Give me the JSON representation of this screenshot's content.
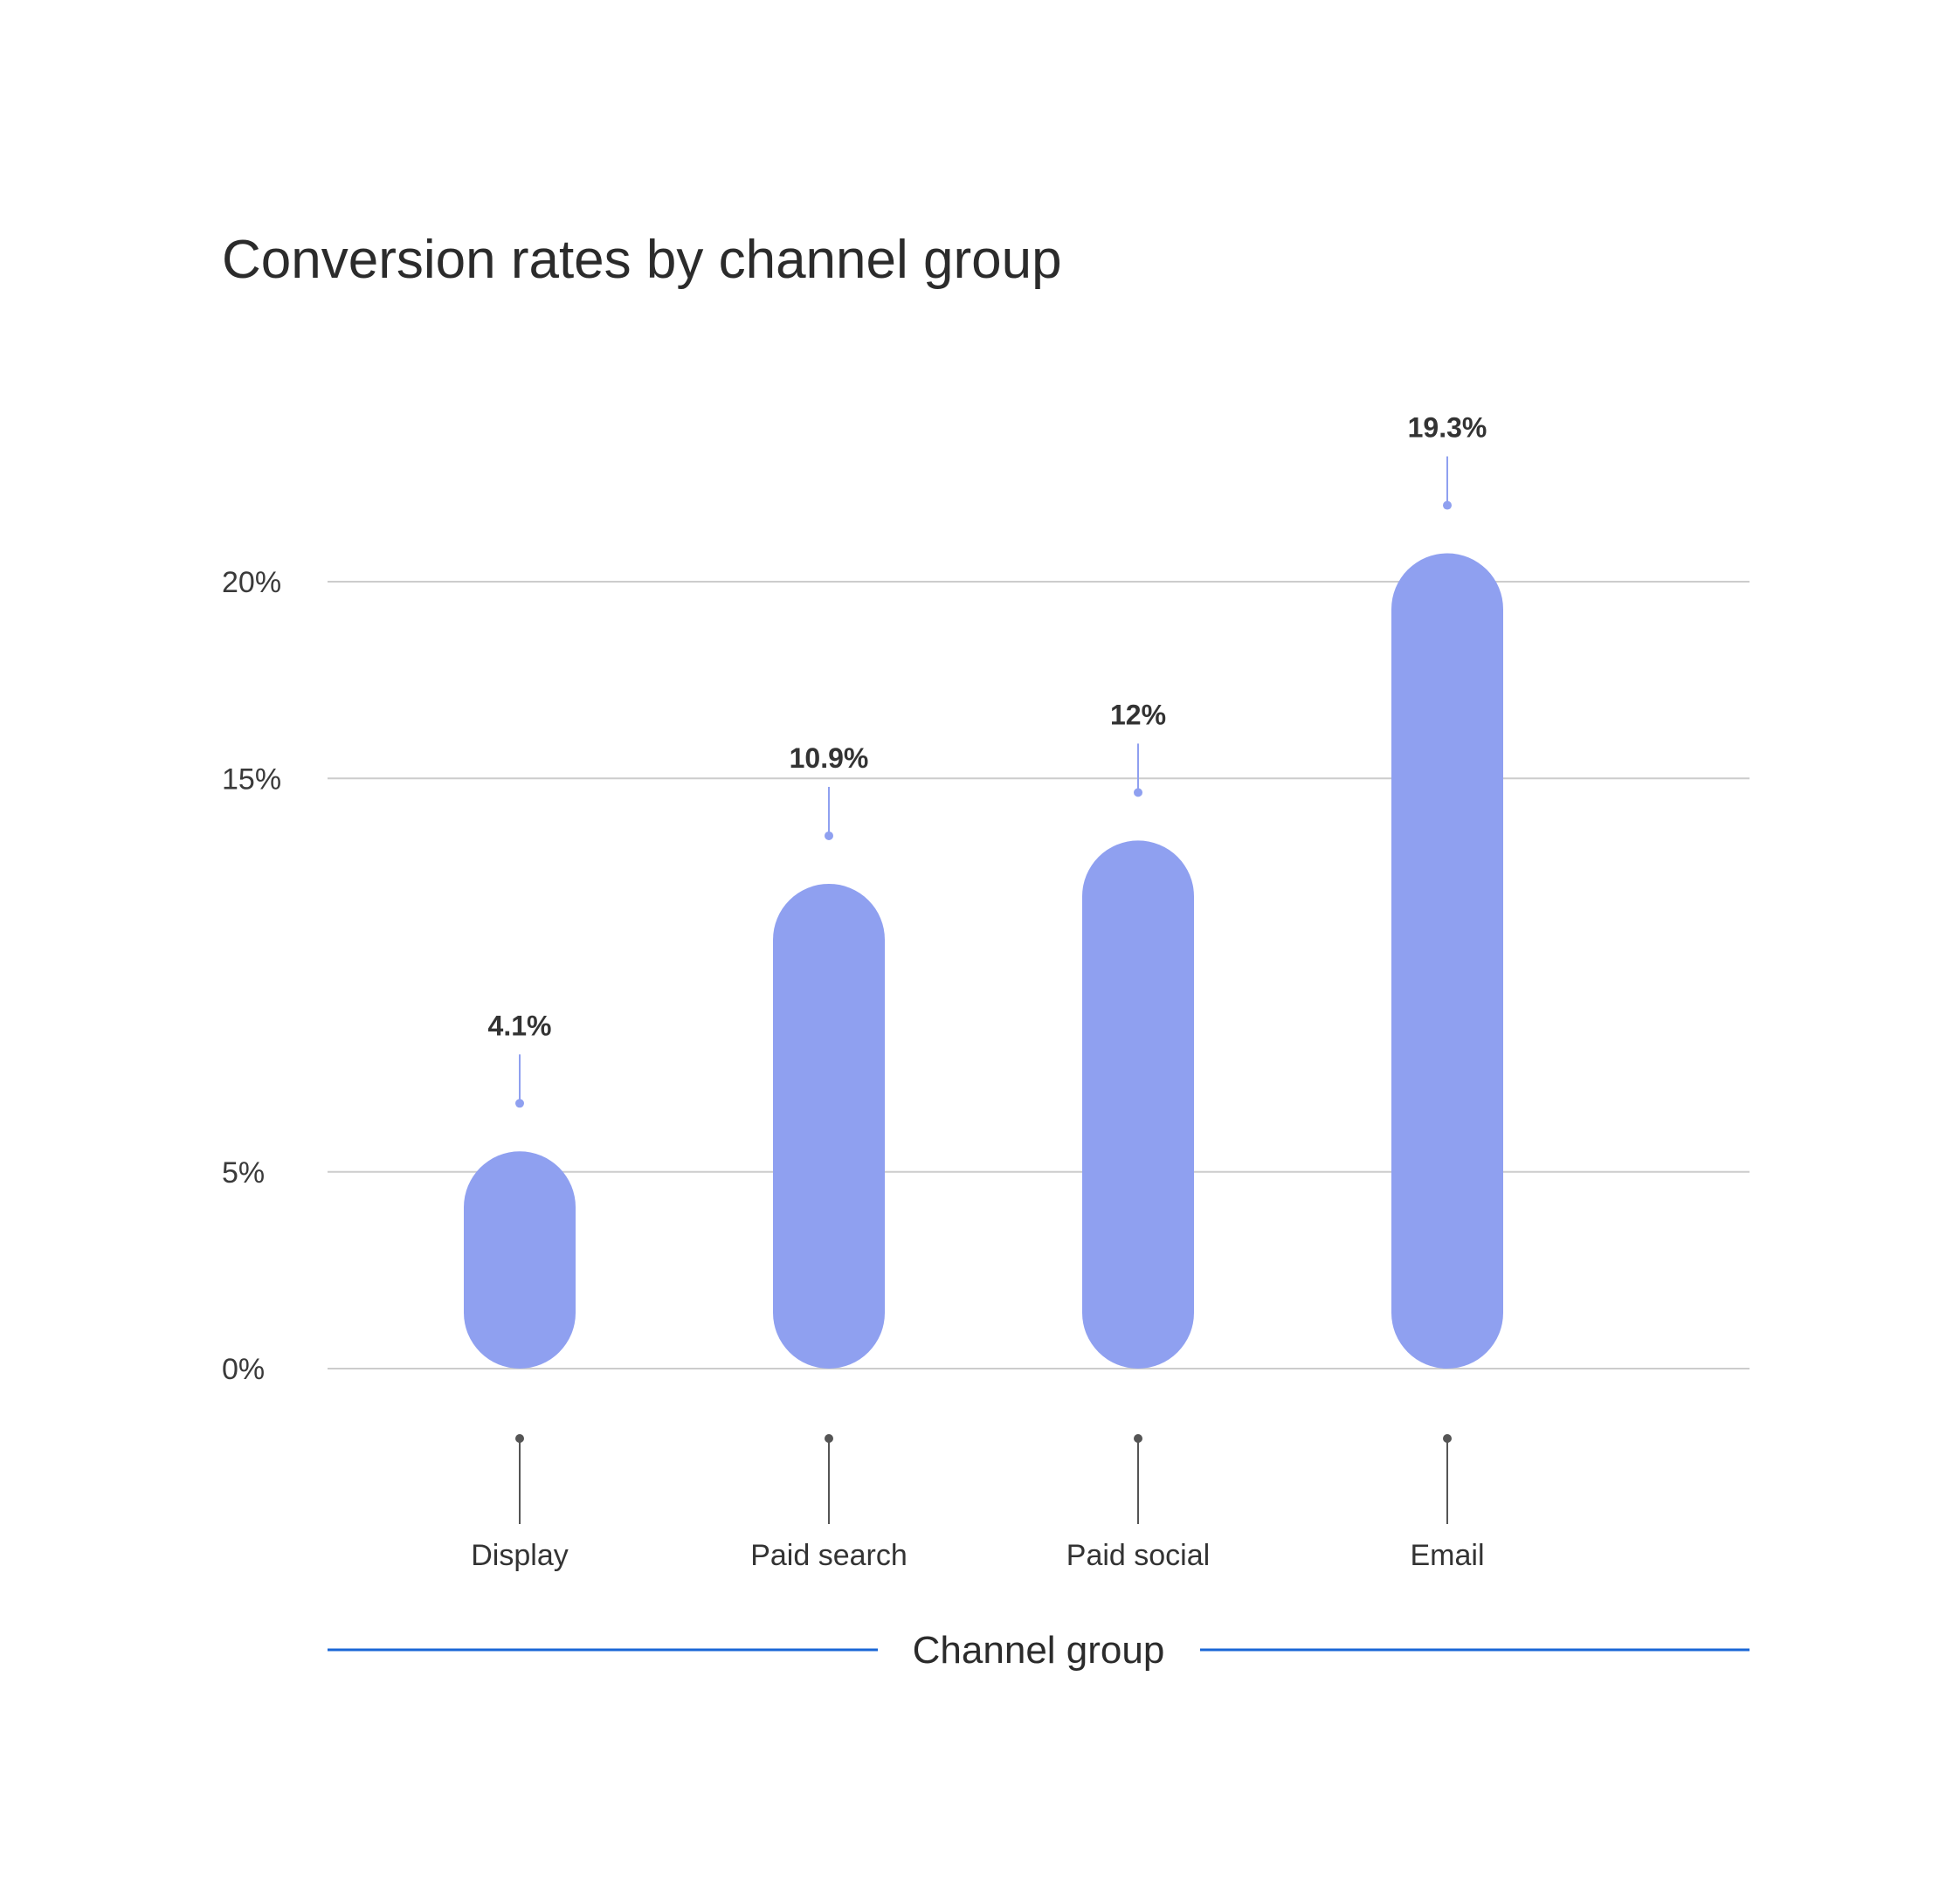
{
  "chart_data": {
    "type": "bar",
    "title": "Conversion rates by channel group",
    "xlabel": "Channel group",
    "ylabel": "",
    "categories": [
      "Display",
      "Paid search",
      "Paid social",
      "Email"
    ],
    "values": [
      4.1,
      10.9,
      12,
      19.3
    ],
    "value_labels": [
      "4.1%",
      "10.9%",
      "12%",
      "19.3%"
    ],
    "y_ticks": [
      {
        "value": 0,
        "label": "0%"
      },
      {
        "value": 5,
        "label": "5%"
      },
      {
        "value": 15,
        "label": "15%"
      },
      {
        "value": 20,
        "label": "20%"
      }
    ],
    "ylim": [
      0,
      20
    ],
    "grid": true,
    "legend": "none",
    "colors": {
      "bar": "#8fa0f0",
      "label_line": "#8fa0f0",
      "tick_line": "#555555",
      "grid": "#cccccc",
      "axis_title_line": "#1a66d6"
    }
  }
}
